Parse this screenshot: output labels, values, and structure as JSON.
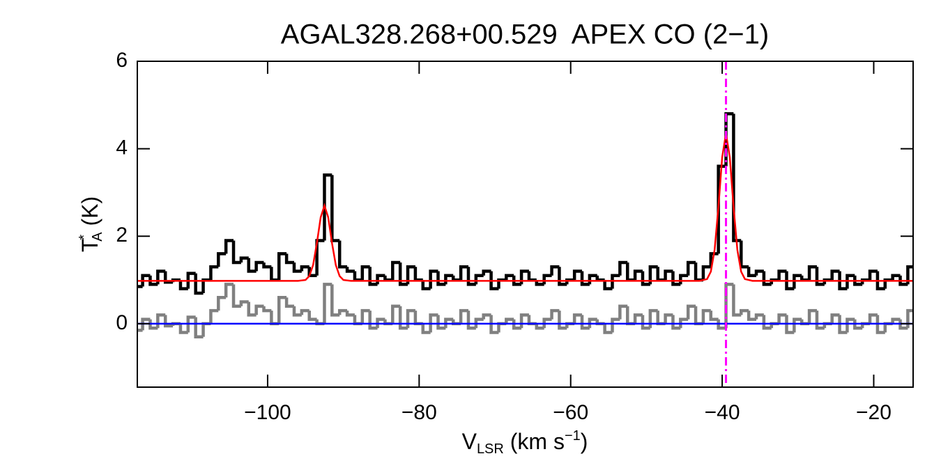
{
  "chart_data": {
    "type": "spectrum",
    "title": "AGAL328.268+00.529  APEX CO (2−1)",
    "x_label": {
      "main": "V",
      "sub": "LSR",
      "unit": " (km s",
      "sup": "−1",
      "close": ")"
    },
    "y_label": {
      "main": "T",
      "sup": "*",
      "sub": "A",
      "unit": " (K)"
    },
    "xlim": [
      -117.2,
      -14.8
    ],
    "ylim": [
      -1.45,
      6
    ],
    "xticks": [
      {
        "value": -100,
        "label": "−100"
      },
      {
        "value": -80,
        "label": "−80"
      },
      {
        "value": -60,
        "label": "−60"
      },
      {
        "value": -40,
        "label": "−40"
      },
      {
        "value": -20,
        "label": "−20"
      }
    ],
    "yticks": [
      0,
      2,
      4,
      6
    ],
    "series": [
      {
        "name": "spectrum",
        "color": "#000000",
        "style": "step",
        "x": [
          -117,
          -116,
          -115,
          -114,
          -113,
          -112,
          -111,
          -110,
          -109,
          -108,
          -107,
          -106,
          -105,
          -104,
          -103,
          -102,
          -101,
          -100,
          -99,
          -98,
          -97,
          -96,
          -95,
          -94,
          -93,
          -92,
          -91,
          -90,
          -89,
          -88,
          -87,
          -86,
          -85,
          -84,
          -83,
          -82,
          -81,
          -80,
          -79,
          -78,
          -77,
          -76,
          -75,
          -74,
          -73,
          -72,
          -71,
          -70,
          -69,
          -68,
          -67,
          -66,
          -65,
          -64,
          -63,
          -62,
          -61,
          -60,
          -59,
          -58,
          -57,
          -56,
          -55,
          -54,
          -53,
          -52,
          -51,
          -50,
          -49,
          -48,
          -47,
          -46,
          -45,
          -44,
          -43,
          -42,
          -41,
          -40,
          -39,
          -38,
          -37,
          -36,
          -35,
          -34,
          -33,
          -32,
          -31,
          -30,
          -29,
          -28,
          -27,
          -26,
          -25,
          -24,
          -23,
          -22,
          -21,
          -20,
          -19,
          -18,
          -17,
          -16,
          -15
        ],
        "values": [
          0.85,
          1.1,
          0.9,
          1.2,
          0.95,
          1.0,
          0.8,
          1.15,
          0.7,
          1.0,
          1.3,
          1.6,
          1.9,
          1.4,
          1.5,
          1.2,
          1.4,
          1.3,
          1.0,
          1.6,
          1.4,
          1.2,
          1.3,
          1.1,
          1.9,
          3.4,
          1.9,
          1.3,
          1.2,
          1.0,
          1.3,
          0.9,
          1.1,
          1.0,
          1.4,
          0.9,
          1.3,
          1.0,
          0.8,
          1.2,
          0.9,
          1.1,
          1.0,
          1.3,
          0.9,
          1.1,
          1.2,
          0.8,
          1.0,
          1.1,
          0.9,
          1.2,
          1.0,
          0.9,
          1.1,
          1.3,
          0.9,
          1.0,
          1.2,
          0.9,
          1.1,
          1.0,
          0.8,
          1.1,
          1.4,
          1.0,
          1.2,
          0.9,
          1.3,
          1.0,
          1.2,
          0.9,
          1.1,
          1.4,
          1.0,
          1.3,
          1.6,
          3.6,
          4.8,
          1.9,
          1.3,
          1.1,
          1.2,
          0.9,
          1.0,
          1.2,
          0.8,
          1.1,
          1.0,
          1.3,
          0.9,
          1.0,
          1.2,
          0.8,
          1.1,
          0.9,
          1.0,
          1.2,
          0.8,
          1.0,
          1.1,
          0.9,
          1.3
        ]
      },
      {
        "name": "residual",
        "color": "#808080",
        "style": "step",
        "x": [
          -117,
          -116,
          -115,
          -114,
          -113,
          -112,
          -111,
          -110,
          -109,
          -108,
          -107,
          -106,
          -105,
          -104,
          -103,
          -102,
          -101,
          -100,
          -99,
          -98,
          -97,
          -96,
          -95,
          -94,
          -93,
          -92,
          -91,
          -90,
          -89,
          -88,
          -87,
          -86,
          -85,
          -84,
          -83,
          -82,
          -81,
          -80,
          -79,
          -78,
          -77,
          -76,
          -75,
          -74,
          -73,
          -72,
          -71,
          -70,
          -69,
          -68,
          -67,
          -66,
          -65,
          -64,
          -63,
          -62,
          -61,
          -60,
          -59,
          -58,
          -57,
          -56,
          -55,
          -54,
          -53,
          -52,
          -51,
          -50,
          -49,
          -48,
          -47,
          -46,
          -45,
          -44,
          -43,
          -42,
          -41,
          -40,
          -39,
          -38,
          -37,
          -36,
          -35,
          -34,
          -33,
          -32,
          -31,
          -30,
          -29,
          -28,
          -27,
          -26,
          -25,
          -24,
          -23,
          -22,
          -21,
          -20,
          -19,
          -18,
          -17,
          -16,
          -15
        ],
        "values": [
          -0.15,
          0.1,
          -0.1,
          0.2,
          -0.05,
          0,
          -0.2,
          0.15,
          -0.3,
          0,
          0.3,
          0.6,
          0.9,
          0.4,
          0.5,
          0.2,
          0.4,
          0.3,
          0,
          0.6,
          0.4,
          0.2,
          0.3,
          0.1,
          0.0,
          0.9,
          0.2,
          0.3,
          0.2,
          0,
          0.3,
          -0.1,
          0.1,
          0,
          0.4,
          -0.1,
          0.3,
          0,
          -0.2,
          0.2,
          -0.1,
          0.1,
          0,
          0.3,
          -0.1,
          0.1,
          0.2,
          -0.2,
          0,
          0.1,
          -0.1,
          0.2,
          0,
          -0.1,
          0.1,
          0.3,
          -0.1,
          0,
          0.2,
          -0.1,
          0.1,
          0,
          -0.2,
          0.1,
          0.4,
          0,
          0.2,
          -0.1,
          0.3,
          0,
          0.2,
          -0.1,
          0.1,
          0.4,
          0,
          0.3,
          0.1,
          -0.1,
          0.9,
          0.2,
          0.3,
          0.1,
          0.2,
          -0.1,
          0,
          0.2,
          -0.2,
          0.1,
          0,
          0.3,
          -0.1,
          0,
          0.2,
          -0.2,
          0.1,
          -0.1,
          0,
          0.2,
          -0.2,
          0,
          0.1,
          -0.1,
          0.3
        ]
      },
      {
        "name": "fit",
        "color": "#ff0000",
        "style": "line",
        "x": [
          -117.2,
          -96,
          -95,
          -94.5,
          -94,
          -93.5,
          -93,
          -92.5,
          -92,
          -91.5,
          -91,
          -90.5,
          -90,
          -89,
          -43,
          -42,
          -41.5,
          -41,
          -40.5,
          -40,
          -39.5,
          -39,
          -38.5,
          -38,
          -37.5,
          -37,
          -36,
          -14.8
        ],
        "values": [
          0.98,
          0.98,
          1.0,
          1.09,
          1.34,
          1.84,
          2.43,
          2.7,
          2.43,
          1.84,
          1.34,
          1.09,
          1.0,
          0.98,
          0.98,
          1.02,
          1.19,
          1.69,
          2.67,
          3.81,
          4.35,
          3.81,
          2.67,
          1.69,
          1.19,
          1.02,
          0.98,
          0.98
        ]
      }
    ],
    "zero_line": {
      "value": 0,
      "color": "#0000ff"
    },
    "vline": {
      "x": -39.5,
      "color": "#ff00ff",
      "style": "dash-dot"
    }
  }
}
